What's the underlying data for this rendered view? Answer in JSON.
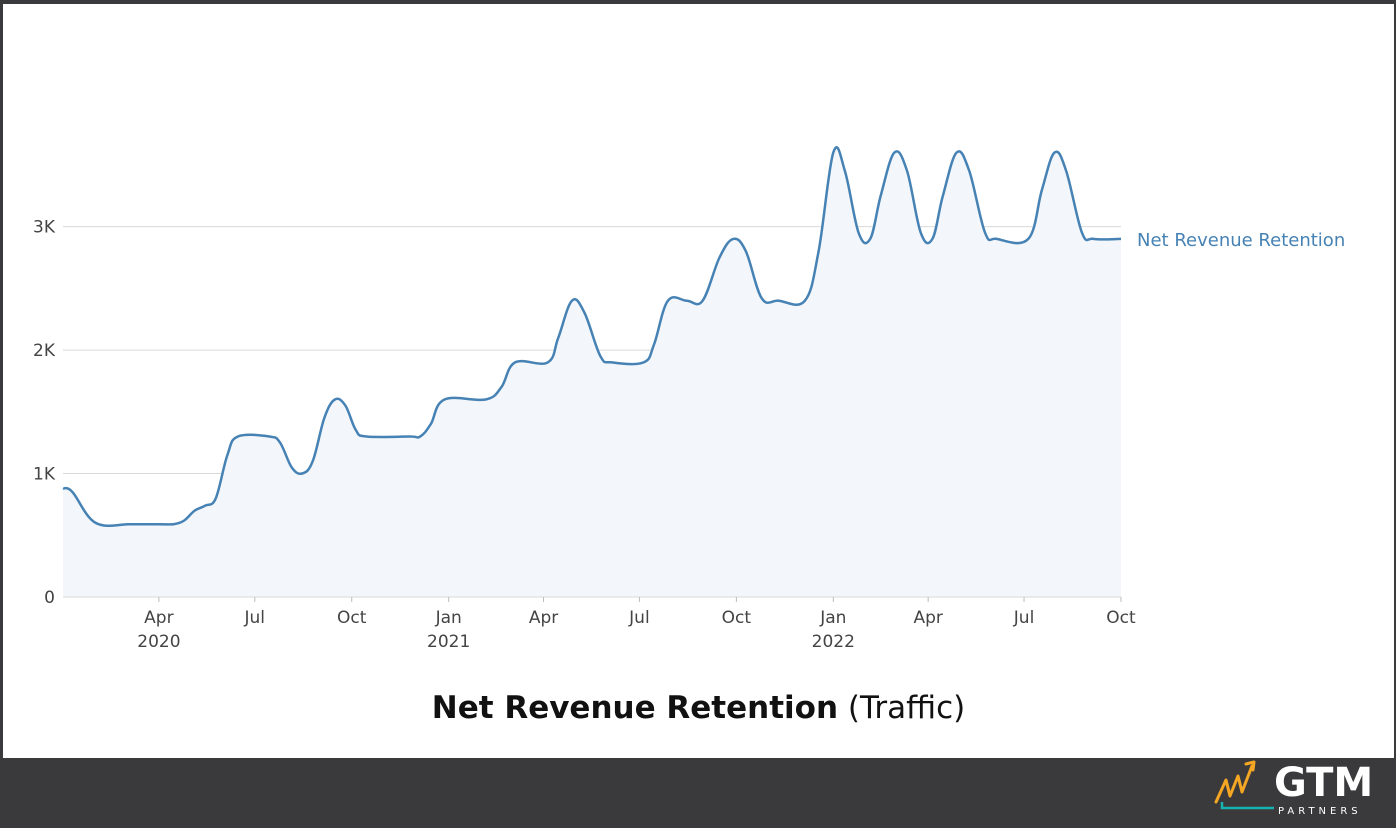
{
  "chart_data": {
    "type": "area",
    "title_bold": "Net Revenue Retention",
    "title_light": "(Traffic)",
    "xlabel": "",
    "ylabel": "",
    "ylim": [
      0,
      3750
    ],
    "y_ticks": [
      {
        "value": 0,
        "label": "0"
      },
      {
        "value": 1000,
        "label": "1K"
      },
      {
        "value": 2000,
        "label": "2K"
      },
      {
        "value": 3000,
        "label": "3K"
      }
    ],
    "x_ticks": [
      {
        "date": "2020-04-01",
        "label": "Apr",
        "year": "2020"
      },
      {
        "date": "2020-07-01",
        "label": "Jul",
        "year": ""
      },
      {
        "date": "2020-10-01",
        "label": "Oct",
        "year": ""
      },
      {
        "date": "2021-01-01",
        "label": "Jan",
        "year": "2021"
      },
      {
        "date": "2021-04-01",
        "label": "Apr",
        "year": ""
      },
      {
        "date": "2021-07-01",
        "label": "Jul",
        "year": ""
      },
      {
        "date": "2021-10-01",
        "label": "Oct",
        "year": ""
      },
      {
        "date": "2022-01-01",
        "label": "Jan",
        "year": "2022"
      },
      {
        "date": "2022-04-01",
        "label": "Apr",
        "year": ""
      },
      {
        "date": "2022-07-01",
        "label": "Jul",
        "year": ""
      },
      {
        "date": "2022-10-01",
        "label": "Oct",
        "year": ""
      }
    ],
    "xlim": [
      "2020-01-01",
      "2022-10-01"
    ],
    "grid": true,
    "legend": "right",
    "series": [
      {
        "name": "Net Revenue Retention",
        "color": "#4682b4",
        "points": [
          [
            "2020-01-01",
            880
          ],
          [
            "2020-01-10",
            850
          ],
          [
            "2020-02-01",
            600
          ],
          [
            "2020-03-05",
            590
          ],
          [
            "2020-04-01",
            590
          ],
          [
            "2020-04-15",
            590
          ],
          [
            "2020-04-25",
            620
          ],
          [
            "2020-05-05",
            700
          ],
          [
            "2020-05-15",
            740
          ],
          [
            "2020-05-25",
            800
          ],
          [
            "2020-06-05",
            1150
          ],
          [
            "2020-06-15",
            1300
          ],
          [
            "2020-07-15",
            1300
          ],
          [
            "2020-07-25",
            1250
          ],
          [
            "2020-08-05",
            1050
          ],
          [
            "2020-08-15",
            1000
          ],
          [
            "2020-08-25",
            1100
          ],
          [
            "2020-09-05",
            1450
          ],
          [
            "2020-09-15",
            1600
          ],
          [
            "2020-09-25",
            1550
          ],
          [
            "2020-10-05",
            1350
          ],
          [
            "2020-10-15",
            1300
          ],
          [
            "2020-11-25",
            1300
          ],
          [
            "2020-12-05",
            1300
          ],
          [
            "2020-12-15",
            1400
          ],
          [
            "2020-12-28",
            1600
          ],
          [
            "2021-02-05",
            1600
          ],
          [
            "2021-02-20",
            1700
          ],
          [
            "2021-03-05",
            1900
          ],
          [
            "2021-04-05",
            1900
          ],
          [
            "2021-04-15",
            2100
          ],
          [
            "2021-04-28",
            2400
          ],
          [
            "2021-05-10",
            2300
          ],
          [
            "2021-05-25",
            1950
          ],
          [
            "2021-06-05",
            1900
          ],
          [
            "2021-07-05",
            1900
          ],
          [
            "2021-07-15",
            2050
          ],
          [
            "2021-07-28",
            2400
          ],
          [
            "2021-08-15",
            2400
          ],
          [
            "2021-08-30",
            2400
          ],
          [
            "2021-09-15",
            2750
          ],
          [
            "2021-09-28",
            2900
          ],
          [
            "2021-10-10",
            2800
          ],
          [
            "2021-10-25",
            2420
          ],
          [
            "2021-11-10",
            2400
          ],
          [
            "2021-12-05",
            2400
          ],
          [
            "2021-12-18",
            2800
          ],
          [
            "2022-01-01",
            3600
          ],
          [
            "2022-01-12",
            3450
          ],
          [
            "2022-01-25",
            2950
          ],
          [
            "2022-02-05",
            2900
          ],
          [
            "2022-02-15",
            3250
          ],
          [
            "2022-02-28",
            3600
          ],
          [
            "2022-03-12",
            3450
          ],
          [
            "2022-03-25",
            2950
          ],
          [
            "2022-04-05",
            2900
          ],
          [
            "2022-04-15",
            3250
          ],
          [
            "2022-04-28",
            3600
          ],
          [
            "2022-05-10",
            3450
          ],
          [
            "2022-05-25",
            2950
          ],
          [
            "2022-06-05",
            2900
          ],
          [
            "2022-07-05",
            2900
          ],
          [
            "2022-07-18",
            3300
          ],
          [
            "2022-07-30",
            3600
          ],
          [
            "2022-08-10",
            3450
          ],
          [
            "2022-08-25",
            2950
          ],
          [
            "2022-09-05",
            2900
          ],
          [
            "2022-10-01",
            2900
          ]
        ]
      }
    ]
  },
  "theme": {
    "background": "#3a3a3c",
    "panel": "#ffffff",
    "line": "#4682b4",
    "fill": "#f3f6fa",
    "grid": "#d9d9d9",
    "logo_accent": "#f5a623",
    "logo_teal": "#17b3b0"
  },
  "logo": {
    "name": "GTM",
    "sub": "PARTNERS"
  }
}
